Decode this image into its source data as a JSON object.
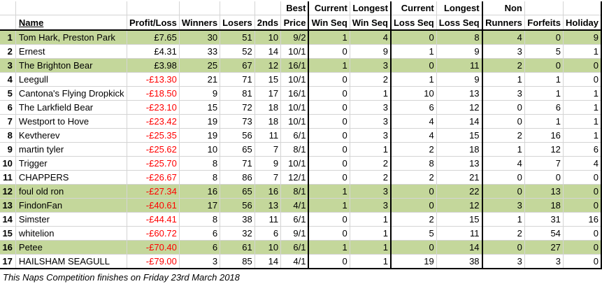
{
  "headers_top": [
    "",
    "",
    "",
    "",
    "",
    "",
    "Best",
    "Current",
    "Longest",
    "Current",
    "Longest",
    "Non",
    "",
    ""
  ],
  "headers_bottom": [
    "",
    "Name",
    "Profit/Loss",
    "Winners",
    "Losers",
    "2nds",
    "Price",
    "Win Seq",
    "Win Seq",
    "Loss Seq",
    "Loss Seq",
    "Runners",
    "Forfeits",
    "Holiday"
  ],
  "rows": [
    {
      "rank": "1",
      "name": "Tom Hark, Preston Park",
      "pl": "£7.65",
      "neg": false,
      "winners": "30",
      "losers": "51",
      "seconds": "10",
      "best": "9/2",
      "cur_win": "1",
      "long_win": "4",
      "cur_loss": "0",
      "long_loss": "8",
      "non_runners": "4",
      "forfeits": "0",
      "holiday": "9",
      "hl": true
    },
    {
      "rank": "2",
      "name": "Ernest",
      "pl": "£4.31",
      "neg": false,
      "winners": "33",
      "losers": "52",
      "seconds": "14",
      "best": "10/1",
      "cur_win": "0",
      "long_win": "9",
      "cur_loss": "1",
      "long_loss": "9",
      "non_runners": "3",
      "forfeits": "5",
      "holiday": "1",
      "hl": false
    },
    {
      "rank": "3",
      "name": "The Brighton Bear",
      "pl": "£3.98",
      "neg": false,
      "winners": "25",
      "losers": "67",
      "seconds": "12",
      "best": "16/1",
      "cur_win": "1",
      "long_win": "3",
      "cur_loss": "0",
      "long_loss": "11",
      "non_runners": "2",
      "forfeits": "0",
      "holiday": "0",
      "hl": true
    },
    {
      "rank": "4",
      "name": "Leegull",
      "pl": "-£13.30",
      "neg": true,
      "winners": "21",
      "losers": "71",
      "seconds": "15",
      "best": "10/1",
      "cur_win": "0",
      "long_win": "2",
      "cur_loss": "1",
      "long_loss": "9",
      "non_runners": "1",
      "forfeits": "1",
      "holiday": "0",
      "hl": false
    },
    {
      "rank": "5",
      "name": "Cantona's Flying Dropkick",
      "pl": "-£18.50",
      "neg": true,
      "winners": "9",
      "losers": "81",
      "seconds": "17",
      "best": "16/1",
      "cur_win": "0",
      "long_win": "1",
      "cur_loss": "10",
      "long_loss": "13",
      "non_runners": "3",
      "forfeits": "1",
      "holiday": "1",
      "hl": false
    },
    {
      "rank": "6",
      "name": "The Larkfield Bear",
      "pl": "-£23.10",
      "neg": true,
      "winners": "15",
      "losers": "72",
      "seconds": "18",
      "best": "10/1",
      "cur_win": "0",
      "long_win": "3",
      "cur_loss": "6",
      "long_loss": "12",
      "non_runners": "0",
      "forfeits": "6",
      "holiday": "1",
      "hl": false
    },
    {
      "rank": "7",
      "name": "Westport to Hove",
      "pl": "-£23.42",
      "neg": true,
      "winners": "19",
      "losers": "73",
      "seconds": "18",
      "best": "10/1",
      "cur_win": "0",
      "long_win": "3",
      "cur_loss": "4",
      "long_loss": "14",
      "non_runners": "0",
      "forfeits": "1",
      "holiday": "1",
      "hl": false
    },
    {
      "rank": "8",
      "name": "Kevtherev",
      "pl": "-£25.35",
      "neg": true,
      "winners": "19",
      "losers": "56",
      "seconds": "11",
      "best": "6/1",
      "cur_win": "0",
      "long_win": "3",
      "cur_loss": "4",
      "long_loss": "15",
      "non_runners": "2",
      "forfeits": "16",
      "holiday": "1",
      "hl": false
    },
    {
      "rank": "9",
      "name": "martin tyler",
      "pl": "-£25.62",
      "neg": true,
      "winners": "10",
      "losers": "65",
      "seconds": "7",
      "best": "8/1",
      "cur_win": "0",
      "long_win": "1",
      "cur_loss": "2",
      "long_loss": "18",
      "non_runners": "1",
      "forfeits": "12",
      "holiday": "6",
      "hl": false
    },
    {
      "rank": "10",
      "name": "Trigger",
      "pl": "-£25.70",
      "neg": true,
      "winners": "8",
      "losers": "71",
      "seconds": "9",
      "best": "10/1",
      "cur_win": "0",
      "long_win": "2",
      "cur_loss": "8",
      "long_loss": "13",
      "non_runners": "4",
      "forfeits": "7",
      "holiday": "4",
      "hl": false
    },
    {
      "rank": "11",
      "name": "CHAPPERS",
      "pl": "-£26.67",
      "neg": true,
      "winners": "8",
      "losers": "86",
      "seconds": "7",
      "best": "12/1",
      "cur_win": "0",
      "long_win": "2",
      "cur_loss": "2",
      "long_loss": "21",
      "non_runners": "0",
      "forfeits": "0",
      "holiday": "0",
      "hl": false
    },
    {
      "rank": "12",
      "name": "foul old ron",
      "pl": "-£27.34",
      "neg": true,
      "winners": "16",
      "losers": "65",
      "seconds": "16",
      "best": "8/1",
      "cur_win": "1",
      "long_win": "3",
      "cur_loss": "0",
      "long_loss": "22",
      "non_runners": "0",
      "forfeits": "13",
      "holiday": "0",
      "hl": true
    },
    {
      "rank": "13",
      "name": "FindonFan",
      "pl": "-£40.61",
      "neg": true,
      "winners": "17",
      "losers": "56",
      "seconds": "13",
      "best": "4/1",
      "cur_win": "1",
      "long_win": "3",
      "cur_loss": "0",
      "long_loss": "12",
      "non_runners": "3",
      "forfeits": "18",
      "holiday": "0",
      "hl": true
    },
    {
      "rank": "14",
      "name": "Simster",
      "pl": "-£44.41",
      "neg": true,
      "winners": "8",
      "losers": "38",
      "seconds": "11",
      "best": "6/1",
      "cur_win": "0",
      "long_win": "1",
      "cur_loss": "2",
      "long_loss": "15",
      "non_runners": "1",
      "forfeits": "31",
      "holiday": "16",
      "hl": false
    },
    {
      "rank": "15",
      "name": "whitelion",
      "pl": "-£60.72",
      "neg": true,
      "winners": "6",
      "losers": "32",
      "seconds": "6",
      "best": "9/1",
      "cur_win": "0",
      "long_win": "1",
      "cur_loss": "5",
      "long_loss": "11",
      "non_runners": "2",
      "forfeits": "54",
      "holiday": "0",
      "hl": false
    },
    {
      "rank": "16",
      "name": "Petee",
      "pl": "-£70.40",
      "neg": true,
      "winners": "6",
      "losers": "61",
      "seconds": "10",
      "best": "6/1",
      "cur_win": "1",
      "long_win": "1",
      "cur_loss": "0",
      "long_loss": "14",
      "non_runners": "0",
      "forfeits": "27",
      "holiday": "0",
      "hl": true
    },
    {
      "rank": "17",
      "name": "HAILSHAM SEAGULL",
      "pl": "-£79.00",
      "neg": true,
      "winners": "3",
      "losers": "85",
      "seconds": "14",
      "best": "4/1",
      "cur_win": "0",
      "long_win": "1",
      "cur_loss": "19",
      "long_loss": "38",
      "non_runners": "3",
      "forfeits": "3",
      "holiday": "0",
      "hl": false
    }
  ],
  "footer": "This Naps Competition finishes on Friday 23rd March 2018",
  "colors": {
    "highlight": "#c4d79b",
    "negative": "#ff0000"
  }
}
